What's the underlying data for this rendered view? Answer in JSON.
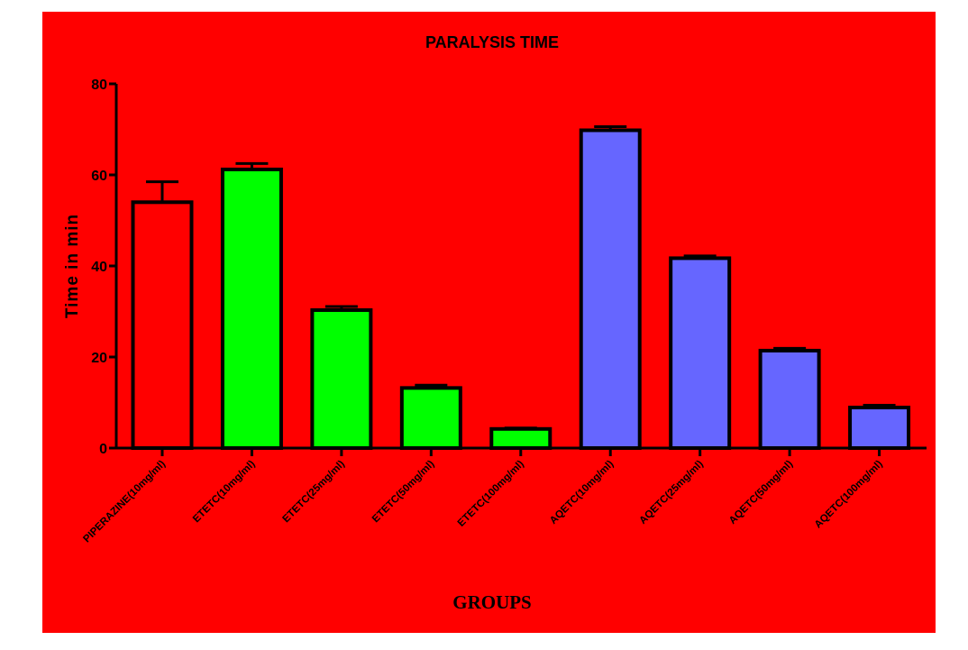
{
  "chart_data": {
    "type": "bar",
    "title": "PARALYSIS TIME",
    "xlabel": "GROUPS",
    "ylabel": "Time in min",
    "ylim": [
      0,
      80
    ],
    "yticks": [
      0,
      20,
      40,
      60,
      80
    ],
    "categories": [
      "PIPERAZINE(10mg/ml)",
      "ETETC(10mg/ml)",
      "ETETC(25mg/ml)",
      "ETETC(50mg/ml)",
      "ETETC(100mg/ml)",
      "AQETC(10mg/ml)",
      "AQETC(25mg/ml)",
      "AQETC(50mg/ml)",
      "AQETC(100mg/ml)"
    ],
    "values": [
      54,
      61.2,
      30.3,
      13.2,
      4.2,
      69.8,
      41.7,
      21.4,
      8.9
    ],
    "errors": [
      4.5,
      1.3,
      0.8,
      0.6,
      0.2,
      0.8,
      0.5,
      0.5,
      0.5
    ],
    "colors": [
      "#ff0000",
      "#00ff00",
      "#00ff00",
      "#00ff00",
      "#00ff00",
      "#6666ff",
      "#6666ff",
      "#6666ff",
      "#6666ff"
    ],
    "background": "#ff0000"
  }
}
